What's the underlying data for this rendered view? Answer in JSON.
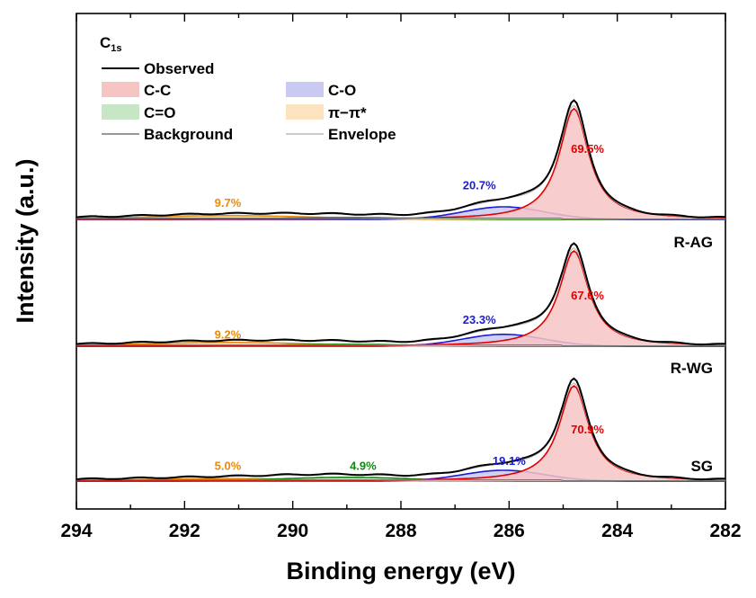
{
  "chart_data": {
    "type": "line",
    "title": "",
    "xlabel": "Binding energy (eV)",
    "ylabel": "Intensity (a.u.)",
    "xlim": [
      294,
      282
    ],
    "x_reversed": true,
    "x_ticks": [
      "294",
      "292",
      "290",
      "288",
      "286",
      "284",
      "282"
    ],
    "y_ticks_shown": false,
    "legend": {
      "title": "C",
      "title_subscript": "1s",
      "placement": "top-left",
      "entries": [
        {
          "label": "Observed",
          "kind": "line",
          "color": "#000000"
        },
        {
          "label": "C-C",
          "kind": "fill",
          "color": "#f7c4c4"
        },
        {
          "label": "C-O",
          "kind": "fill",
          "color": "#c9c9f2"
        },
        {
          "label": "C=O",
          "kind": "fill",
          "color": "#c6e6c6"
        },
        {
          "label": "π−π*",
          "kind": "fill",
          "color": "#fbe3c0"
        },
        {
          "label": "Background",
          "kind": "line",
          "color": "#777777"
        },
        {
          "label": "Envelope",
          "kind": "line",
          "color": "#bbbbbb"
        }
      ]
    },
    "components": {
      "C-C": {
        "center_eV": 284.8,
        "stroke": "#e00000",
        "fill": "#f7c4c4"
      },
      "C-O": {
        "center_eV": 286.1,
        "stroke": "#1c1cd6",
        "fill": "#c9c9f2"
      },
      "C=O": {
        "center_eV": 289.0,
        "stroke": "#108a10",
        "fill": "#c6e6c6"
      },
      "pi-pi*": {
        "center_eV": 291.2,
        "stroke": "#e88a0c",
        "fill": "#fbe3c0"
      }
    },
    "samples": [
      {
        "name": "R-AG",
        "peak_intensity": 1.0,
        "annotations": [
          {
            "component": "C-C",
            "text": "69.5%",
            "color": "#e00000",
            "x": 284.55,
            "y": 0.53
          },
          {
            "component": "C-O",
            "text": "20.7%",
            "color": "#1c1cd6",
            "x": 286.55,
            "y": 0.24
          },
          {
            "component": "pi-pi*",
            "text": "9.7%",
            "color": "#e88a0c",
            "x": 291.2,
            "y": 0.1
          }
        ]
      },
      {
        "name": "R-WG",
        "peak_intensity": 0.86,
        "annotations": [
          {
            "component": "C-C",
            "text": "67.6%",
            "color": "#e00000",
            "x": 284.55,
            "y": 0.37
          },
          {
            "component": "C-O",
            "text": "23.3%",
            "color": "#1c1cd6",
            "x": 286.55,
            "y": 0.18
          },
          {
            "component": "pi-pi*",
            "text": "9.2%",
            "color": "#e88a0c",
            "x": 291.2,
            "y": 0.06
          }
        ]
      },
      {
        "name": "SG",
        "peak_intensity": 0.86,
        "annotations": [
          {
            "component": "C-C",
            "text": "70.9%",
            "color": "#e00000",
            "x": 284.55,
            "y": 0.38
          },
          {
            "component": "C-O",
            "text": "19.1%",
            "color": "#1c1cd6",
            "x": 286.0,
            "y": 0.13
          },
          {
            "component": "C=O",
            "text": "4.9%",
            "color": "#108a10",
            "x": 288.7,
            "y": 0.09
          },
          {
            "component": "pi-pi*",
            "text": "5.0%",
            "color": "#e88a0c",
            "x": 291.2,
            "y": 0.09
          }
        ]
      }
    ]
  }
}
